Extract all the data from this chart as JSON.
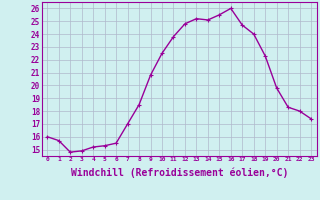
{
  "x": [
    0,
    1,
    2,
    3,
    4,
    5,
    6,
    7,
    8,
    9,
    10,
    11,
    12,
    13,
    14,
    15,
    16,
    17,
    18,
    19,
    20,
    21,
    22,
    23
  ],
  "y": [
    16.0,
    15.7,
    14.8,
    14.9,
    15.2,
    15.3,
    15.5,
    17.0,
    18.5,
    20.8,
    22.5,
    23.8,
    24.8,
    25.2,
    25.1,
    25.5,
    26.0,
    24.7,
    24.0,
    22.3,
    19.8,
    18.3,
    18.0,
    17.4
  ],
  "line_color": "#990099",
  "marker": "+",
  "marker_size": 3,
  "linewidth": 1.0,
  "xlabel": "Windchill (Refroidissement éolien,°C)",
  "xlabel_fontsize": 7,
  "ylabel_ticks": [
    15,
    16,
    17,
    18,
    19,
    20,
    21,
    22,
    23,
    24,
    25,
    26
  ],
  "xlim": [
    -0.5,
    23.5
  ],
  "ylim": [
    14.5,
    26.5
  ],
  "bg_color": "#d0f0f0",
  "grid_color": "#b0b8cc",
  "xtick_labels": [
    "0",
    "1",
    "2",
    "3",
    "4",
    "5",
    "6",
    "7",
    "8",
    "9",
    "10",
    "11",
    "12",
    "13",
    "14",
    "15",
    "16",
    "17",
    "18",
    "19",
    "20",
    "21",
    "22",
    "23"
  ]
}
